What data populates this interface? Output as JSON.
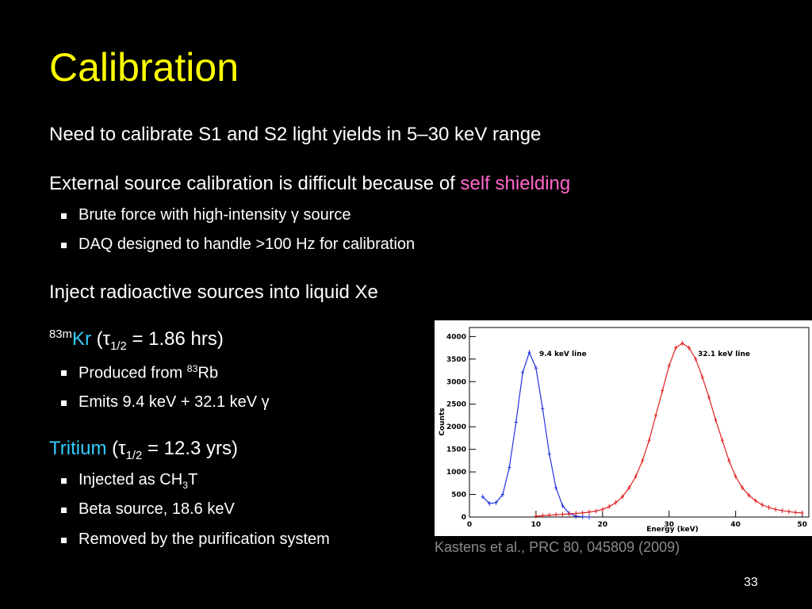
{
  "slide": {
    "title": "Calibration",
    "points": [
      {
        "text": "Need to calibrate S1 and S2 light yields in 5–30 keV range"
      },
      {
        "text": "External source calibration is difficult because of",
        "highlight": "self shielding",
        "subpoints": [
          {
            "text": "Brute force with high-intensity γ source"
          },
          {
            "text": "DAQ designed to handle >100 Hz for calibration"
          }
        ]
      },
      {
        "text": "Inject radioactive sources into liquid Xe"
      },
      {
        "isotope_mass": "83m",
        "isotope": "Kr",
        "open": "(",
        "symbol": "τ",
        "symbol_sub": "1/2",
        "value": "= 1.86 hrs)",
        "subpoints": [
          {
            "text": "Produced from",
            "sup": "83",
            "after": "Rb"
          },
          {
            "text": "Emits 9.4 keV + 32.1 keV γ"
          }
        ]
      },
      {
        "isotope": "Tritium",
        "open": "(",
        "symbol": "τ",
        "symbol_sub": "1/2",
        "value": "= 12.3 yrs)",
        "subpoints": [
          {
            "text": "Injected as CH",
            "sub": "3",
            "after": "T"
          },
          {
            "text": "Beta source, 18.6 keV"
          },
          {
            "text": "Removed by the purification system"
          }
        ]
      }
    ],
    "caption": "Kastens et al., PRC 80, 045809 (2009)",
    "page_number": "33"
  },
  "chart_data": {
    "type": "line",
    "x_label": "Energy (keV)",
    "y_label": "Counts",
    "annotations": [
      "9.4 keV line",
      "32.1 keV line"
    ],
    "x": [
      0,
      1,
      2,
      3,
      4,
      5,
      6,
      7,
      8,
      9,
      10,
      11,
      12,
      13,
      14,
      15,
      16,
      17,
      18,
      19,
      20,
      21,
      22,
      23,
      24,
      25,
      26,
      27,
      28,
      29,
      30,
      31,
      32,
      33,
      34,
      35,
      36,
      37,
      38,
      39,
      40,
      41,
      42,
      43,
      44,
      45,
      46,
      47,
      48,
      49,
      50
    ],
    "series": [
      {
        "name": "9.4 keV line",
        "color": "#2233dd",
        "values": [
          null,
          null,
          450,
          300,
          320,
          500,
          1100,
          2100,
          3200,
          3650,
          3300,
          2400,
          1400,
          650,
          250,
          80,
          20,
          5,
          0,
          null,
          null,
          null,
          null,
          null,
          null,
          null,
          null,
          null,
          null,
          null,
          null,
          null,
          null,
          null,
          null,
          null,
          null,
          null,
          null,
          null,
          null,
          null,
          null,
          null,
          null,
          null,
          null,
          null,
          null,
          null,
          null
        ]
      },
      {
        "name": "32.1 keV line",
        "color": "#e02020",
        "values": [
          null,
          null,
          null,
          null,
          null,
          null,
          null,
          null,
          null,
          null,
          20,
          30,
          40,
          50,
          60,
          70,
          80,
          90,
          110,
          130,
          170,
          230,
          320,
          450,
          650,
          900,
          1250,
          1700,
          2250,
          2800,
          3350,
          3750,
          3850,
          3750,
          3500,
          3100,
          2650,
          2150,
          1700,
          1250,
          900,
          650,
          480,
          360,
          270,
          210,
          170,
          140,
          120,
          100,
          90
        ]
      }
    ],
    "xlim": [
      0,
      51
    ],
    "ylim": [
      0,
      4200
    ],
    "xticks": [
      0,
      10,
      20,
      30,
      40,
      50
    ],
    "yticks": [
      0,
      500,
      1000,
      1500,
      2000,
      2500,
      3000,
      3500,
      4000
    ]
  }
}
